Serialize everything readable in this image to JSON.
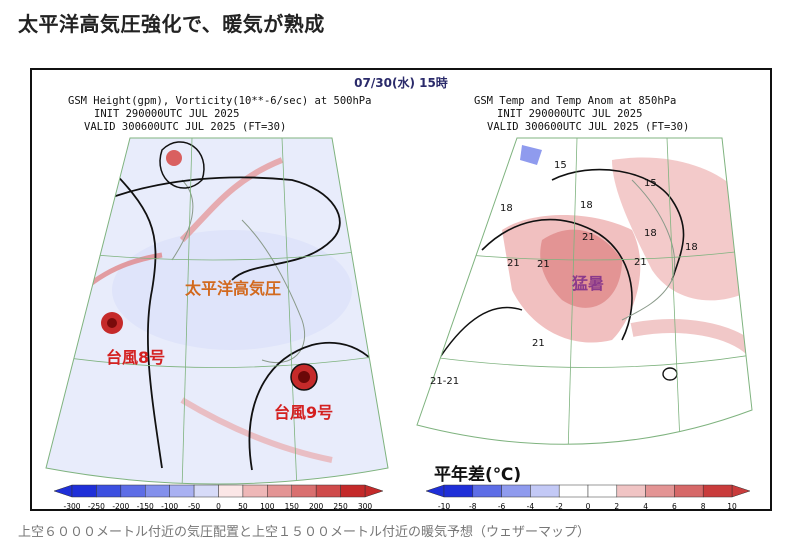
{
  "article": {
    "title": "太平洋高気圧強化で、暖気が熟成",
    "caption": "上空６０００メートル付近の気圧配置と上空１５００メートル付近の暖気予想（ウェザーマップ）"
  },
  "figure": {
    "date": "07/30(水) 15時",
    "left": {
      "title": "GSM Height(gpm), Vorticity(10**-6/sec) at 500hPa",
      "init": "INIT 290000UTC JUL 2025",
      "valid": "VALID 300600UTC JUL 2025 (FT=30)",
      "labels": {
        "high": "太平洋高気圧",
        "typhoon8": "台風8号",
        "typhoon9": "台風9号"
      },
      "colorbar": {
        "ticks": [
          "-300",
          "-250",
          "-200",
          "-150",
          "-100",
          "-50",
          "0",
          "50",
          "100",
          "150",
          "200",
          "250",
          "300"
        ],
        "colors": [
          "#1f2fd8",
          "#3c4fe0",
          "#5d6de6",
          "#8390ec",
          "#a9b1f2",
          "#d7dbf8",
          "#fbe6e6",
          "#eeb7b7",
          "#e39494",
          "#d96f6f",
          "#cf4b4b",
          "#c42a2a"
        ]
      }
    },
    "right": {
      "title": "GSM Temp and Temp Anom at 850hPa",
      "init": "INIT 290000UTC JUL 2025",
      "valid": "VALID 300600UTC JUL 2025 (FT=30)",
      "labels": {
        "heat": "猛暑",
        "contours": [
          "15",
          "15",
          "18",
          "18",
          "18",
          "18",
          "21",
          "21",
          "21",
          "21",
          "21",
          "21-21"
        ]
      },
      "legend_title": "平年差(℃)",
      "colorbar": {
        "ticks": [
          "-10",
          "-8",
          "-6",
          "-4",
          "-2",
          "0",
          "2",
          "4",
          "6",
          "8",
          "10"
        ],
        "colors": [
          "#1f2fd8",
          "#5d6de6",
          "#8f9bee",
          "#c3c9f6",
          "#ffffff",
          "#ffffff",
          "#f0c4c4",
          "#e39494",
          "#d66868",
          "#c93c3c"
        ]
      }
    }
  }
}
